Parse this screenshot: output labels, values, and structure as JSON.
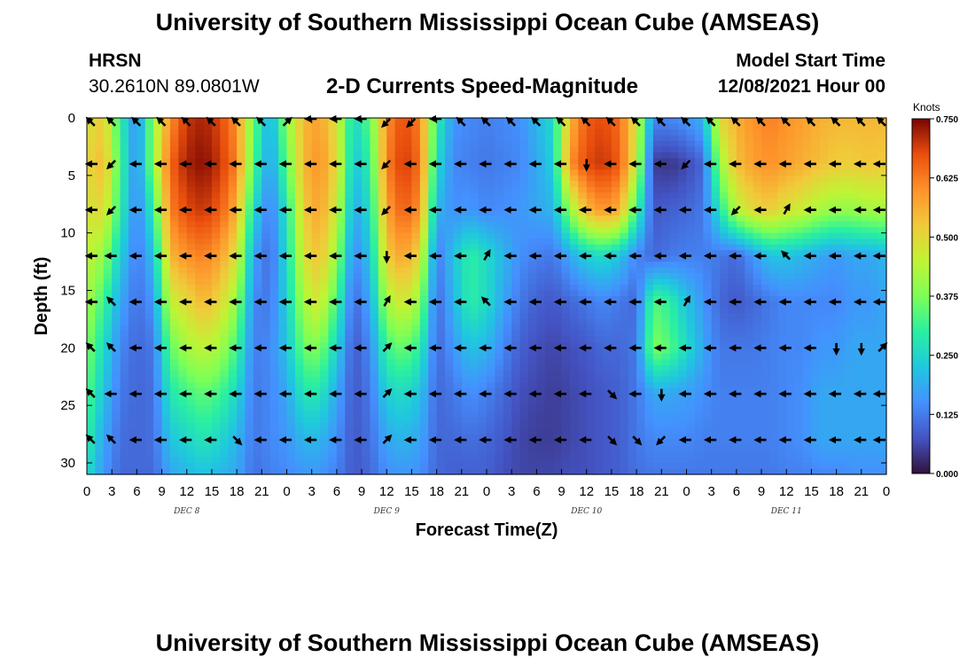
{
  "header": {
    "title": "University of Southern Mississippi Ocean Cube (AMSEAS)",
    "station": "HRSN",
    "coordinates": "30.2610N  89.0801W",
    "plot_title": "2-D Currents Speed-Magnitude",
    "model_start_label": "Model Start Time",
    "model_start_value": "12/08/2021 Hour 00"
  },
  "footer": {
    "title": "University of Southern Mississippi Ocean Cube (AMSEAS)"
  },
  "chart_data": {
    "type": "heatmap",
    "title": "2-D Currents Speed-Magnitude",
    "xlabel": "Forecast Time(Z)",
    "ylabel": "Depth (ft)",
    "xlim": [
      0,
      96
    ],
    "ylim": [
      31,
      0
    ],
    "x_tick_values": [
      0,
      3,
      6,
      9,
      12,
      15,
      18,
      21,
      24,
      27,
      30,
      33,
      36,
      39,
      42,
      45,
      48,
      51,
      54,
      57,
      60,
      63,
      66,
      69,
      72,
      75,
      78,
      81,
      84,
      87,
      90,
      93,
      96
    ],
    "x_tick_labels": [
      "0",
      "3",
      "6",
      "9",
      "12",
      "15",
      "18",
      "21",
      "0",
      "3",
      "6",
      "9",
      "12",
      "15",
      "18",
      "21",
      "0",
      "3",
      "6",
      "9",
      "12",
      "15",
      "18",
      "21",
      "0",
      "3",
      "6",
      "9",
      "12",
      "15",
      "18",
      "21",
      "0"
    ],
    "y_tick_values": [
      0,
      5,
      10,
      15,
      20,
      25,
      30
    ],
    "y_tick_labels": [
      "0",
      "5",
      "10",
      "15",
      "20",
      "25",
      "30"
    ],
    "day_labels": [
      {
        "text": "DEC 8",
        "hour": 12
      },
      {
        "text": "DEC 9",
        "hour": 36
      },
      {
        "text": "DEC 10",
        "hour": 60
      },
      {
        "text": "DEC 11",
        "hour": 84
      }
    ],
    "colorbar": {
      "unit": "Knots",
      "min": 0,
      "max": 0.75,
      "tick_values": [
        0,
        0.125,
        0.25,
        0.375,
        0.5,
        0.625,
        0.75
      ],
      "tick_labels": [
        "0.000",
        "0.125",
        "0.250",
        "0.375",
        "0.500",
        "0.625",
        "0.750"
      ]
    },
    "speed_times": [
      0,
      2,
      4,
      6,
      8,
      10,
      12,
      14,
      16,
      18,
      20,
      22,
      24,
      26,
      28,
      30,
      32,
      34,
      36,
      38,
      40,
      42,
      44,
      46,
      48,
      50,
      52,
      54,
      56,
      58,
      60,
      62,
      64,
      66,
      68,
      70,
      72,
      74,
      76,
      78,
      80,
      82,
      84,
      86,
      88,
      90,
      92,
      94,
      96
    ],
    "speed_depths": [
      0,
      4,
      8,
      12,
      16,
      20,
      24,
      28,
      31
    ],
    "speed_knots": [
      [
        0.48,
        0.5,
        0.48,
        0.45,
        0.42,
        0.38,
        0.34,
        0.3,
        0.26
      ],
      [
        0.52,
        0.55,
        0.5,
        0.4,
        0.32,
        0.26,
        0.22,
        0.18,
        0.16
      ],
      [
        0.3,
        0.32,
        0.3,
        0.24,
        0.18,
        0.14,
        0.12,
        0.11,
        0.1
      ],
      [
        0.14,
        0.14,
        0.13,
        0.12,
        0.11,
        0.1,
        0.1,
        0.1,
        0.1
      ],
      [
        0.4,
        0.4,
        0.3,
        0.22,
        0.16,
        0.12,
        0.11,
        0.11,
        0.1
      ],
      [
        0.6,
        0.65,
        0.62,
        0.55,
        0.45,
        0.35,
        0.28,
        0.22,
        0.18
      ],
      [
        0.7,
        0.72,
        0.68,
        0.6,
        0.5,
        0.42,
        0.32,
        0.25,
        0.2
      ],
      [
        0.72,
        0.74,
        0.7,
        0.62,
        0.55,
        0.45,
        0.35,
        0.28,
        0.22
      ],
      [
        0.68,
        0.7,
        0.66,
        0.58,
        0.5,
        0.42,
        0.32,
        0.25,
        0.2
      ],
      [
        0.6,
        0.62,
        0.56,
        0.48,
        0.4,
        0.32,
        0.25,
        0.2,
        0.18
      ],
      [
        0.36,
        0.34,
        0.26,
        0.18,
        0.14,
        0.13,
        0.12,
        0.12,
        0.11
      ],
      [
        0.18,
        0.16,
        0.12,
        0.1,
        0.12,
        0.14,
        0.14,
        0.14,
        0.13
      ],
      [
        0.4,
        0.35,
        0.28,
        0.26,
        0.24,
        0.22,
        0.18,
        0.16,
        0.14
      ],
      [
        0.55,
        0.55,
        0.52,
        0.48,
        0.42,
        0.36,
        0.28,
        0.2,
        0.16
      ],
      [
        0.58,
        0.6,
        0.58,
        0.54,
        0.48,
        0.38,
        0.28,
        0.2,
        0.16
      ],
      [
        0.48,
        0.5,
        0.46,
        0.4,
        0.32,
        0.24,
        0.18,
        0.15,
        0.13
      ],
      [
        0.25,
        0.22,
        0.18,
        0.14,
        0.1,
        0.08,
        0.08,
        0.08,
        0.08
      ],
      [
        0.35,
        0.3,
        0.26,
        0.22,
        0.18,
        0.14,
        0.12,
        0.11,
        0.1
      ],
      [
        0.6,
        0.62,
        0.58,
        0.52,
        0.42,
        0.32,
        0.24,
        0.18,
        0.15
      ],
      [
        0.68,
        0.7,
        0.66,
        0.58,
        0.48,
        0.36,
        0.26,
        0.2,
        0.16
      ],
      [
        0.62,
        0.64,
        0.6,
        0.5,
        0.4,
        0.3,
        0.22,
        0.18,
        0.15
      ],
      [
        0.3,
        0.26,
        0.2,
        0.12,
        0.1,
        0.1,
        0.1,
        0.1,
        0.1
      ],
      [
        0.16,
        0.14,
        0.15,
        0.22,
        0.2,
        0.16,
        0.12,
        0.1,
        0.09
      ],
      [
        0.14,
        0.13,
        0.16,
        0.3,
        0.3,
        0.22,
        0.15,
        0.11,
        0.09
      ],
      [
        0.13,
        0.12,
        0.14,
        0.26,
        0.26,
        0.2,
        0.13,
        0.1,
        0.09
      ],
      [
        0.14,
        0.13,
        0.15,
        0.2,
        0.18,
        0.14,
        0.1,
        0.08,
        0.07
      ],
      [
        0.15,
        0.14,
        0.16,
        0.15,
        0.12,
        0.09,
        0.07,
        0.06,
        0.06
      ],
      [
        0.2,
        0.18,
        0.18,
        0.13,
        0.09,
        0.07,
        0.06,
        0.05,
        0.06
      ],
      [
        0.26,
        0.24,
        0.2,
        0.12,
        0.08,
        0.06,
        0.05,
        0.05,
        0.06
      ],
      [
        0.55,
        0.6,
        0.4,
        0.18,
        0.1,
        0.07,
        0.06,
        0.06,
        0.07
      ],
      [
        0.66,
        0.68,
        0.55,
        0.24,
        0.12,
        0.08,
        0.07,
        0.07,
        0.07
      ],
      [
        0.68,
        0.7,
        0.6,
        0.26,
        0.14,
        0.1,
        0.08,
        0.08,
        0.08
      ],
      [
        0.64,
        0.66,
        0.56,
        0.22,
        0.12,
        0.1,
        0.09,
        0.09,
        0.09
      ],
      [
        0.48,
        0.46,
        0.32,
        0.14,
        0.1,
        0.12,
        0.12,
        0.12,
        0.11
      ],
      [
        0.14,
        0.05,
        0.08,
        0.1,
        0.34,
        0.38,
        0.18,
        0.14,
        0.12
      ],
      [
        0.14,
        0.04,
        0.09,
        0.12,
        0.3,
        0.34,
        0.18,
        0.14,
        0.12
      ],
      [
        0.16,
        0.06,
        0.1,
        0.13,
        0.22,
        0.26,
        0.17,
        0.14,
        0.12
      ],
      [
        0.2,
        0.1,
        0.12,
        0.13,
        0.16,
        0.18,
        0.15,
        0.13,
        0.12
      ],
      [
        0.5,
        0.4,
        0.28,
        0.12,
        0.1,
        0.12,
        0.13,
        0.13,
        0.12
      ],
      [
        0.56,
        0.54,
        0.44,
        0.1,
        0.08,
        0.12,
        0.13,
        0.13,
        0.12
      ],
      [
        0.6,
        0.58,
        0.5,
        0.16,
        0.1,
        0.12,
        0.13,
        0.13,
        0.12
      ],
      [
        0.62,
        0.6,
        0.52,
        0.22,
        0.12,
        0.13,
        0.13,
        0.13,
        0.12
      ],
      [
        0.6,
        0.58,
        0.48,
        0.22,
        0.14,
        0.14,
        0.14,
        0.14,
        0.13
      ],
      [
        0.58,
        0.56,
        0.46,
        0.2,
        0.14,
        0.14,
        0.15,
        0.15,
        0.13
      ],
      [
        0.56,
        0.54,
        0.42,
        0.18,
        0.14,
        0.16,
        0.18,
        0.18,
        0.14
      ],
      [
        0.55,
        0.52,
        0.4,
        0.16,
        0.14,
        0.16,
        0.18,
        0.18,
        0.14
      ],
      [
        0.55,
        0.52,
        0.4,
        0.18,
        0.16,
        0.18,
        0.18,
        0.18,
        0.15
      ],
      [
        0.55,
        0.53,
        0.42,
        0.18,
        0.16,
        0.18,
        0.18,
        0.18,
        0.15
      ],
      [
        0.55,
        0.52,
        0.42,
        0.2,
        0.18,
        0.18,
        0.18,
        0.18,
        0.15
      ]
    ],
    "arrow_times": [
      0,
      3,
      6,
      9,
      12,
      15,
      18,
      21,
      24,
      27,
      30,
      33,
      36,
      39,
      42,
      45,
      48,
      51,
      54,
      57,
      60,
      63,
      66,
      69,
      72,
      75,
      78,
      81,
      84,
      87,
      90,
      93,
      96
    ],
    "arrow_depths": [
      0,
      4,
      8,
      12,
      16,
      20,
      24,
      28
    ],
    "arrow_dirs_deg": [
      [
        225,
        225,
        225,
        225,
        225,
        225,
        225,
        225,
        315,
        180,
        180,
        180,
        135,
        135,
        180,
        225,
        225,
        225,
        225,
        225,
        225,
        225,
        225,
        225,
        225,
        225,
        225,
        225,
        225,
        225,
        225,
        225,
        225
      ],
      [
        180,
        135,
        180,
        180,
        180,
        180,
        180,
        180,
        180,
        180,
        180,
        180,
        135,
        180,
        180,
        180,
        180,
        180,
        180,
        180,
        90,
        180,
        180,
        180,
        135,
        180,
        180,
        180,
        180,
        180,
        180,
        180,
        180
      ],
      [
        180,
        135,
        180,
        180,
        180,
        180,
        180,
        180,
        180,
        180,
        180,
        180,
        135,
        180,
        180,
        180,
        180,
        180,
        180,
        180,
        180,
        180,
        180,
        180,
        180,
        180,
        135,
        180,
        300,
        180,
        180,
        180,
        180
      ],
      [
        180,
        180,
        180,
        180,
        180,
        180,
        180,
        180,
        180,
        180,
        180,
        180,
        90,
        180,
        180,
        180,
        300,
        180,
        180,
        180,
        180,
        180,
        180,
        180,
        180,
        180,
        180,
        180,
        225,
        180,
        180,
        180,
        180
      ],
      [
        180,
        225,
        180,
        180,
        180,
        180,
        180,
        180,
        180,
        180,
        180,
        180,
        300,
        180,
        180,
        180,
        225,
        180,
        180,
        180,
        180,
        180,
        180,
        180,
        300,
        180,
        180,
        180,
        180,
        180,
        180,
        180,
        180
      ],
      [
        225,
        225,
        180,
        180,
        180,
        180,
        180,
        180,
        180,
        180,
        180,
        180,
        315,
        180,
        180,
        180,
        180,
        180,
        180,
        180,
        180,
        180,
        180,
        180,
        180,
        180,
        180,
        180,
        180,
        180,
        90,
        90,
        315
      ],
      [
        225,
        180,
        180,
        180,
        180,
        180,
        180,
        180,
        180,
        180,
        180,
        180,
        315,
        180,
        180,
        180,
        180,
        180,
        180,
        180,
        180,
        45,
        180,
        90,
        180,
        180,
        180,
        180,
        180,
        180,
        180,
        180,
        180
      ],
      [
        225,
        225,
        180,
        180,
        180,
        180,
        45,
        180,
        180,
        180,
        180,
        180,
        315,
        180,
        180,
        180,
        180,
        180,
        180,
        180,
        180,
        45,
        45,
        135,
        180,
        180,
        180,
        180,
        180,
        180,
        180,
        180,
        180
      ]
    ]
  }
}
